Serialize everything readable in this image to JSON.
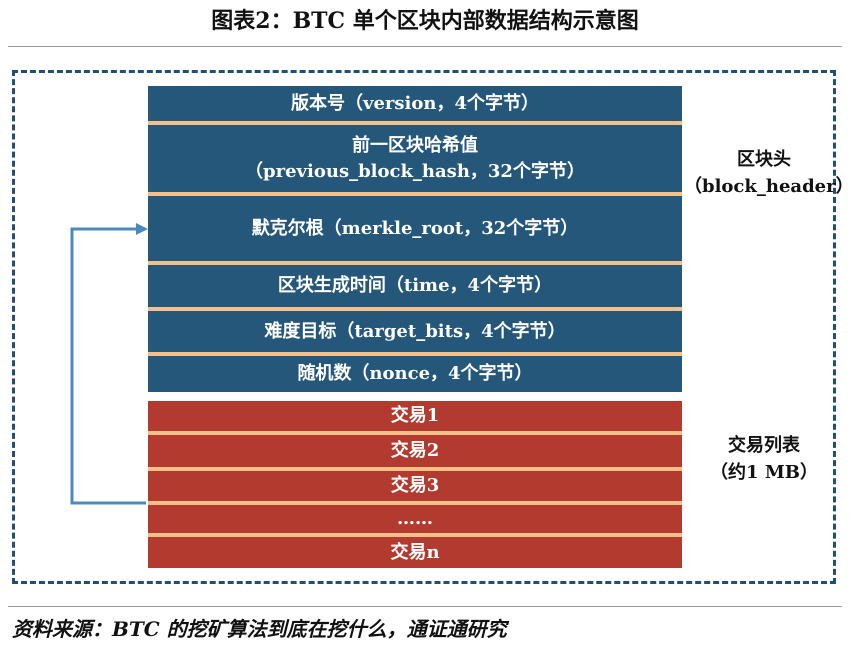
{
  "title": "图表2：BTC 单个区块内部数据结构示意图",
  "block_header": {
    "label_line1": "区块头",
    "label_line2": "（block_header）",
    "fields": [
      {
        "text": "版本号（version，4个字节）"
      },
      {
        "line1": "前一区块哈希值",
        "line2": "（previous_block_hash，32个字节）"
      },
      {
        "text": "默克尔根（merkle_root，32个字节）"
      },
      {
        "text": "区块生成时间（time，4个字节）"
      },
      {
        "text": "难度目标（target_bits，4个字节）"
      },
      {
        "text": "随机数（nonce，4个字节）"
      }
    ]
  },
  "transactions": {
    "label_line1": "交易列表",
    "label_line2": "（约1 MB）",
    "items": [
      "交易1",
      "交易2",
      "交易3",
      "……",
      "交易n"
    ]
  },
  "source": "资料来源：BTC 的挖矿算法到底在挖什么，通证通研究",
  "colors": {
    "header_block": "#245779",
    "transaction_block": "#b23a2f",
    "separator": "#f3c08a",
    "frame_border": "#1f4f7a",
    "arrow": "#4a8ac0"
  }
}
